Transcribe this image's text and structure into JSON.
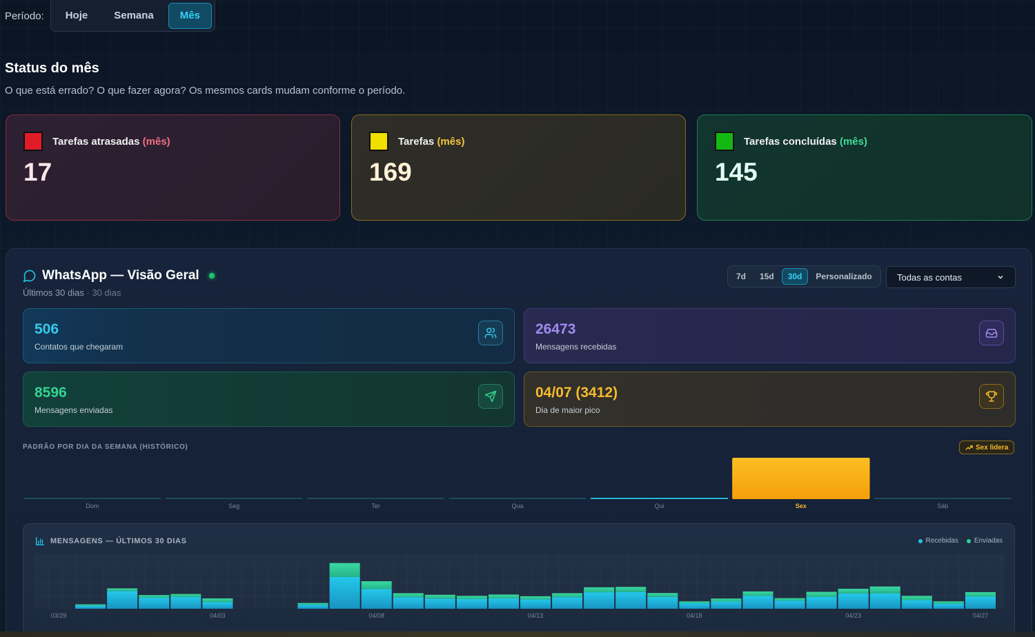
{
  "period": {
    "label": "Período:",
    "options": [
      "Hoje",
      "Semana",
      "Mês"
    ],
    "active": "Mês"
  },
  "status": {
    "title": "Status do mês",
    "subtitle": "O que está errado? O que fazer agora? Os mesmos cards mudam conforme o período.",
    "cards": [
      {
        "label": "Tarefas atrasadas",
        "period": "(mês)",
        "value": "17",
        "color": "#e01c28"
      },
      {
        "label": "Tarefas",
        "period": "(mês)",
        "value": "169",
        "color": "#f0e000"
      },
      {
        "label": "Tarefas concluídas",
        "period": "(mês)",
        "value": "145",
        "color": "#13b813"
      }
    ]
  },
  "whatsapp": {
    "title": "WhatsApp — Visão Geral",
    "subtitle": "Últimos 30 dias",
    "subtitle_extra": "· 30 dias",
    "ranges": [
      "7d",
      "15d",
      "30d",
      "Personalizado"
    ],
    "active_range": "30d",
    "account_select": "Todas as contas",
    "kpis": [
      {
        "value": "506",
        "label": "Contatos que chegaram",
        "icon": "users-icon"
      },
      {
        "value": "26473",
        "label": "Mensagens recebidas",
        "icon": "inbox-icon"
      },
      {
        "value": "8596",
        "label": "Mensagens enviadas",
        "icon": "send-icon"
      },
      {
        "value": "04/07 (3412)",
        "label": "Dia de maior pico",
        "icon": "trophy-icon"
      }
    ],
    "weekday_title": "PADRÃO POR DIA DA SEMANA (HISTÓRICO)",
    "weekday_badge": "Sex lidera",
    "messages_title": "MENSAGENS — ÚLTIMOS 30 DIAS",
    "legend": [
      {
        "name": "Recebidas",
        "color": "#22c3e6"
      },
      {
        "name": "Enviadas",
        "color": "#2fd39a"
      }
    ]
  },
  "chart_data": [
    {
      "type": "bar",
      "title": "PADRÃO POR DIA DA SEMANA (HISTÓRICO)",
      "categories": [
        "Dom",
        "Seg",
        "Ter",
        "Qua",
        "Qui",
        "Sex",
        "Sáb"
      ],
      "values": [
        0,
        0,
        0,
        0,
        100,
        3412,
        0
      ],
      "highlight": "Sex"
    },
    {
      "type": "bar",
      "stacked": true,
      "title": "MENSAGENS — ÚLTIMOS 30 DIAS",
      "x_ticks": [
        "03/29",
        "04/03",
        "04/08",
        "04/13",
        "04/18",
        "04/23",
        "04/27"
      ],
      "x": [
        "03/29",
        "03/30",
        "03/31",
        "04/01",
        "04/02",
        "04/03",
        "04/04",
        "04/05",
        "04/06",
        "04/07",
        "04/08",
        "04/09",
        "04/10",
        "04/11",
        "04/12",
        "04/13",
        "04/14",
        "04/15",
        "04/16",
        "04/17",
        "04/18",
        "04/19",
        "04/20",
        "04/21",
        "04/22",
        "04/23",
        "04/24",
        "04/25",
        "04/26",
        "04/27"
      ],
      "series": [
        {
          "name": "Recebidas",
          "values": [
            0,
            230,
            1320,
            820,
            880,
            490,
            0,
            0,
            300,
            2370,
            1470,
            860,
            760,
            720,
            770,
            700,
            860,
            1230,
            1250,
            890,
            410,
            540,
            950,
            610,
            880,
            1140,
            1140,
            640,
            380,
            900
          ]
        },
        {
          "name": "Enviadas",
          "values": [
            0,
            100,
            200,
            200,
            220,
            280,
            0,
            0,
            130,
            1040,
            580,
            300,
            280,
            240,
            290,
            230,
            300,
            370,
            380,
            280,
            140,
            220,
            340,
            180,
            380,
            350,
            520,
            320,
            170,
            340
          ]
        }
      ],
      "ylim": [
        0,
        3600
      ]
    }
  ]
}
